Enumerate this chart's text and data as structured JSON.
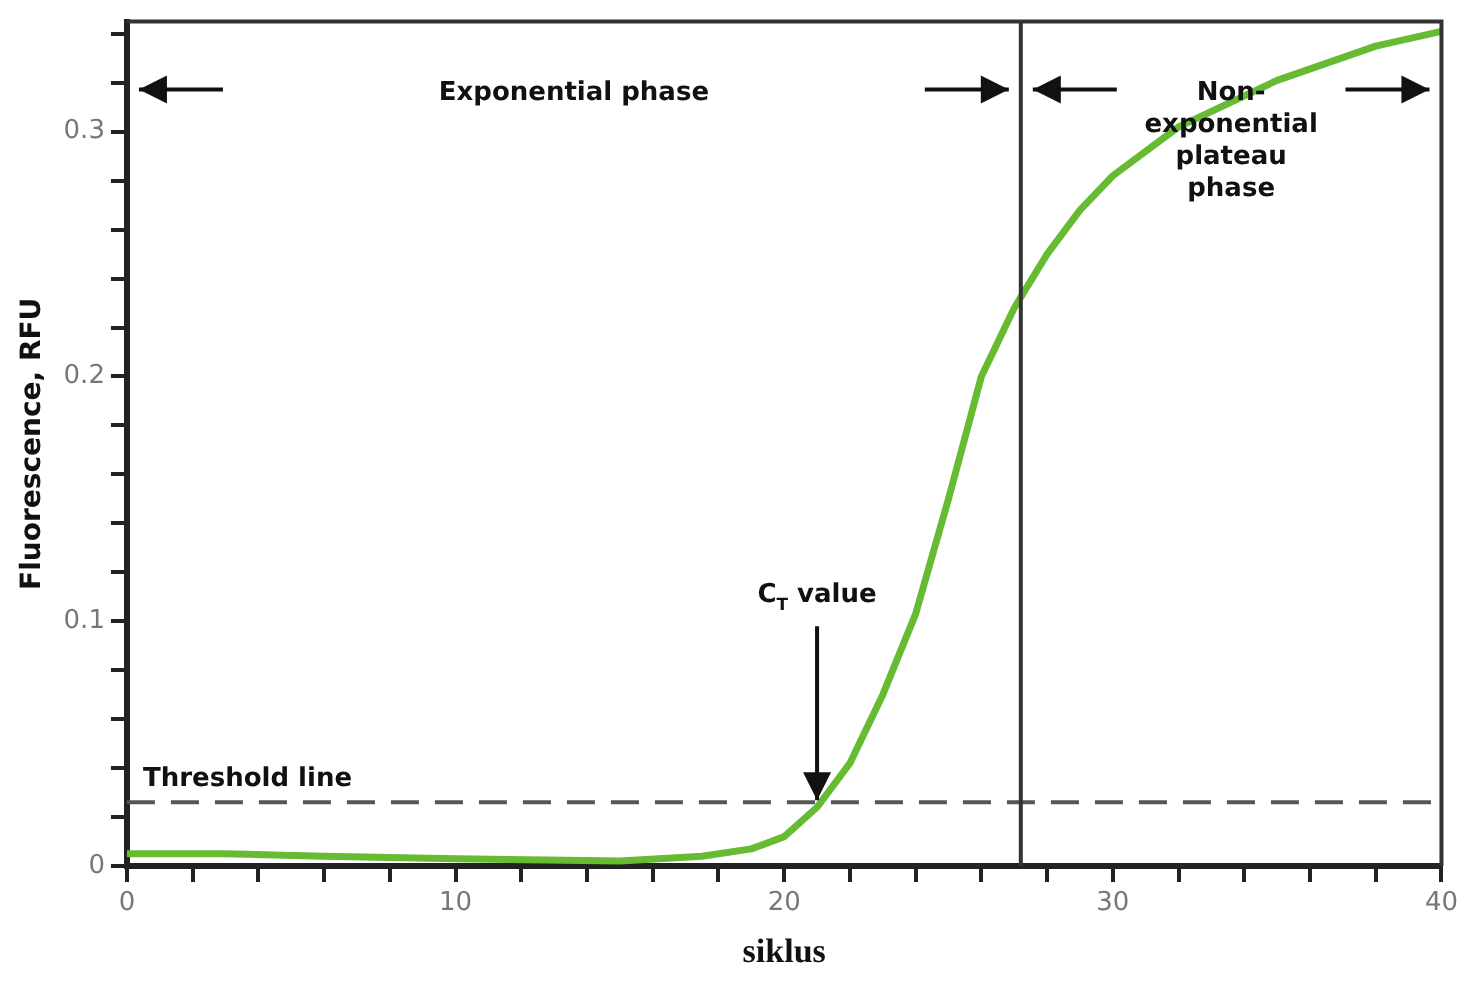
{
  "chart_data": {
    "type": "line",
    "xlabel": "siklus",
    "ylabel": "Fluorescence, RFU",
    "xlim": [
      0,
      40
    ],
    "ylim": [
      0,
      0.345
    ],
    "xticks": [
      0,
      {
        "value": 2,
        "label": null
      },
      {
        "value": 4,
        "label": null
      },
      {
        "value": 6,
        "label": null
      },
      {
        "value": 8,
        "label": null
      },
      10,
      {
        "value": 12,
        "label": null
      },
      {
        "value": 14,
        "label": null
      },
      {
        "value": 16,
        "label": null
      },
      {
        "value": 18,
        "label": null
      },
      20,
      {
        "value": 22,
        "label": null
      },
      {
        "value": 24,
        "label": null
      },
      {
        "value": 26,
        "label": null
      },
      {
        "value": 28,
        "label": null
      },
      30,
      {
        "value": 32,
        "label": null
      },
      {
        "value": 34,
        "label": null
      },
      {
        "value": 36,
        "label": null
      },
      {
        "value": 38,
        "label": null
      },
      40
    ],
    "yticks": [
      0,
      {
        "value": 0.02,
        "label": null
      },
      {
        "value": 0.04,
        "label": null
      },
      {
        "value": 0.06,
        "label": null
      },
      {
        "value": 0.08,
        "label": null
      },
      0.1,
      {
        "value": 0.12,
        "label": null
      },
      {
        "value": 0.14,
        "label": null
      },
      {
        "value": 0.16,
        "label": null
      },
      {
        "value": 0.18,
        "label": null
      },
      0.2,
      {
        "value": 0.22,
        "label": null
      },
      {
        "value": 0.24,
        "label": null
      },
      {
        "value": 0.26,
        "label": null
      },
      {
        "value": 0.28,
        "label": null
      },
      0.3,
      {
        "value": 0.32,
        "label": null
      },
      {
        "value": 0.34,
        "label": null
      }
    ],
    "grid": false,
    "legend": false,
    "marker": "none",
    "line_style": "solid",
    "series": [
      {
        "color": "#66bb33",
        "x": [
          0,
          3,
          6,
          10,
          15,
          17.5,
          19,
          20,
          21,
          22,
          23,
          24,
          25,
          26,
          27,
          28,
          29,
          30,
          32,
          35,
          38,
          40
        ],
        "values": [
          0.005,
          0.005,
          0.004,
          0.003,
          0.002,
          0.004,
          0.007,
          0.012,
          0.024,
          0.042,
          0.07,
          0.103,
          0.15,
          0.2,
          0.228,
          0.25,
          0.268,
          0.282,
          0.302,
          0.321,
          0.335,
          0.341
        ]
      }
    ],
    "ref_lines": [
      {
        "axis": "y",
        "value": 0.026,
        "label": "Threshold line",
        "line_style": "dashed",
        "color": "#555555"
      },
      {
        "axis": "x",
        "value": 27.2,
        "color": "#333333",
        "line_style": "solid"
      }
    ],
    "annotations": [
      "Exponential phase",
      "Non-exponential plateau phase",
      {
        "text": "C$_{T}$ value",
        "x": 21,
        "y": 0.026
      }
    ]
  }
}
